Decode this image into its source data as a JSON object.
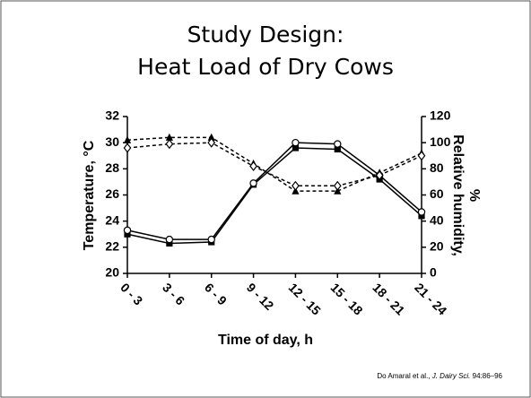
{
  "chart_data": {
    "type": "line",
    "title": [
      "Study Design:",
      "Heat Load of Dry Cows"
    ],
    "xlabel": "Time of day, h",
    "ylabel": "Temperature, °C",
    "y2label": [
      "Relative humidity,",
      "%"
    ],
    "categories": [
      "0 - 3",
      "3 - 6",
      "6 - 9",
      "9 - 12",
      "12 - 15",
      "15 - 18",
      "18 - 21",
      "21 - 24"
    ],
    "ylim": [
      20,
      32
    ],
    "yticks": [
      20,
      22,
      24,
      26,
      28,
      30,
      32
    ],
    "y2lim": [
      0,
      120
    ],
    "y2ticks": [
      0,
      20,
      40,
      60,
      80,
      100,
      120
    ],
    "series": [
      {
        "color": "#000000",
        "line": "solid",
        "marker": "square",
        "values": [
          23.0,
          22.3,
          22.4,
          26.8,
          29.6,
          29.5,
          27.2,
          24.4
        ]
      },
      {
        "color": "#000000",
        "line": "solid",
        "marker": "circle",
        "values": [
          23.3,
          22.6,
          22.6,
          26.9,
          30.0,
          29.9,
          27.5,
          24.7
        ]
      },
      {
        "color": "#000000",
        "line": "dashed",
        "marker": "triangle",
        "axis": "y2",
        "values": [
          102,
          104,
          104,
          84,
          63,
          63,
          77,
          92
        ]
      },
      {
        "color": "#000000",
        "line": "dashed",
        "marker": "diamond",
        "axis": "y2",
        "values": [
          96,
          99,
          100,
          82,
          67,
          67,
          75,
          90
        ]
      }
    ],
    "source": [
      "Do Amaral et al., ",
      "J. Dairy Sci.",
      " 94:86–96"
    ]
  }
}
